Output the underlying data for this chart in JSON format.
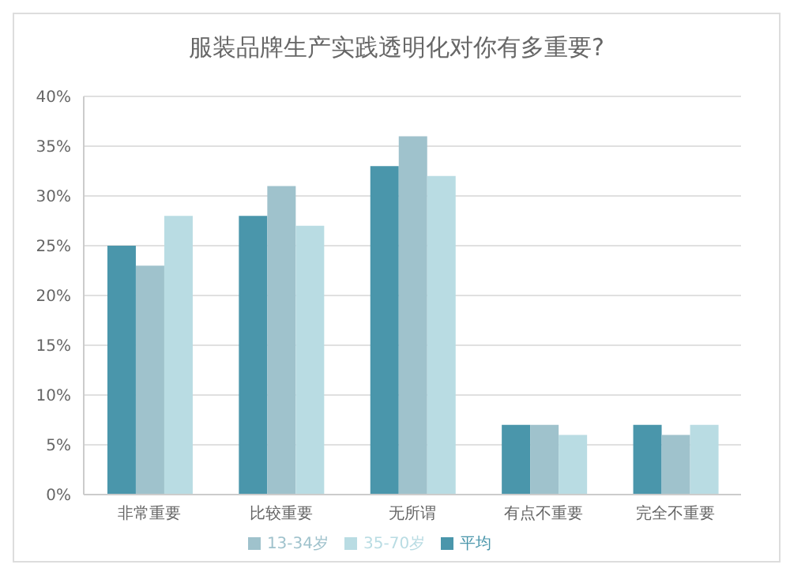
{
  "chart_data": {
    "type": "bar",
    "title": "服装品牌生产实践透明化对你有多重要?",
    "categories": [
      "非常重要",
      "比较重要",
      "无所谓",
      "有点不重要",
      "完全不重要"
    ],
    "series": [
      {
        "name": "平均",
        "color": "#4a96ab",
        "values": [
          25,
          28,
          33,
          7,
          7
        ]
      },
      {
        "name": "13-34岁",
        "color": "#9fc2cc",
        "values": [
          23,
          31,
          36,
          7,
          6
        ]
      },
      {
        "name": "35-70岁",
        "color": "#b9dce3",
        "values": [
          28,
          27,
          32,
          6,
          7
        ]
      }
    ],
    "ylim": [
      0,
      40
    ],
    "yticks": [
      {
        "value": 0,
        "label": "0%"
      },
      {
        "value": 5,
        "label": "5%"
      },
      {
        "value": 10,
        "label": "10%"
      },
      {
        "value": 15,
        "label": "15%"
      },
      {
        "value": 20,
        "label": "20%"
      },
      {
        "value": 25,
        "label": "25%"
      },
      {
        "value": 30,
        "label": "30%"
      },
      {
        "value": 35,
        "label": "35%"
      },
      {
        "value": 40,
        "label": "40%"
      }
    ],
    "grid": "y",
    "legend": "bottom"
  }
}
